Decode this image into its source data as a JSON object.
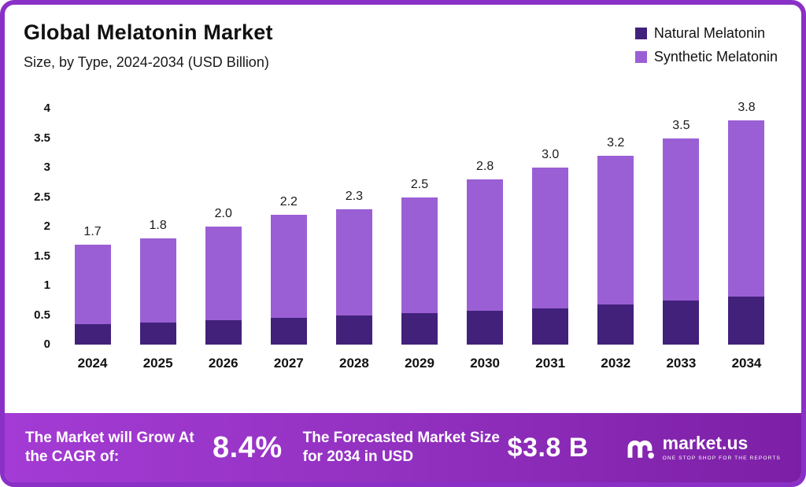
{
  "header": {
    "title": "Global Melatonin Market",
    "subtitle": "Size, by Type, 2024-2034 (USD Billion)"
  },
  "legend": [
    {
      "label": "Natural Melatonin",
      "color": "#42217b"
    },
    {
      "label": "Synthetic Melatonin",
      "color": "#9b5fd5"
    }
  ],
  "chart_data": {
    "type": "bar",
    "stacked": true,
    "title": "Global Melatonin Market",
    "subtitle": "Size, by Type, 2024-2034 (USD Billion)",
    "categories": [
      "2024",
      "2025",
      "2026",
      "2027",
      "2028",
      "2029",
      "2030",
      "2031",
      "2032",
      "2033",
      "2034"
    ],
    "series": [
      {
        "name": "Natural Melatonin",
        "color": "#42217b",
        "values": [
          0.35,
          0.38,
          0.42,
          0.45,
          0.5,
          0.54,
          0.58,
          0.62,
          0.68,
          0.75,
          0.82
        ]
      },
      {
        "name": "Synthetic Melatonin",
        "color": "#9b5fd5",
        "values": [
          1.35,
          1.42,
          1.58,
          1.75,
          1.8,
          1.96,
          2.22,
          2.38,
          2.52,
          2.75,
          2.98
        ]
      }
    ],
    "totals": [
      1.7,
      1.8,
      2.0,
      2.2,
      2.3,
      2.5,
      2.8,
      3.0,
      3.2,
      3.5,
      3.8
    ],
    "total_labels": [
      "1.7",
      "1.8",
      "2.0",
      "2.2",
      "2.3",
      "2.5",
      "2.8",
      "3.0",
      "3.2",
      "3.5",
      "3.8"
    ],
    "ylim": [
      0,
      4
    ],
    "yticks": [
      0,
      0.5,
      1,
      1.5,
      2,
      2.5,
      3,
      3.5,
      4
    ],
    "ytick_labels": [
      "0",
      "0.5",
      "1",
      "1.5",
      "2",
      "2.5",
      "3",
      "3.5",
      "4"
    ],
    "grid": false,
    "legend_position": "top-right"
  },
  "banner": {
    "cagr_label": "The Market will Grow At the CAGR of:",
    "cagr_value": "8.4%",
    "forecast_label": "The Forecasted Market Size for 2034 in USD",
    "forecast_value": "$3.8 B",
    "brand": "market.us",
    "brand_tagline": "ONE STOP SHOP FOR THE REPORTS"
  },
  "colors": {
    "frame_border": "#8a30c6",
    "banner_gradient_start": "#a33bd4",
    "banner_gradient_end": "#7d1fa6",
    "natural": "#42217b",
    "synthetic": "#9b5fd5"
  }
}
